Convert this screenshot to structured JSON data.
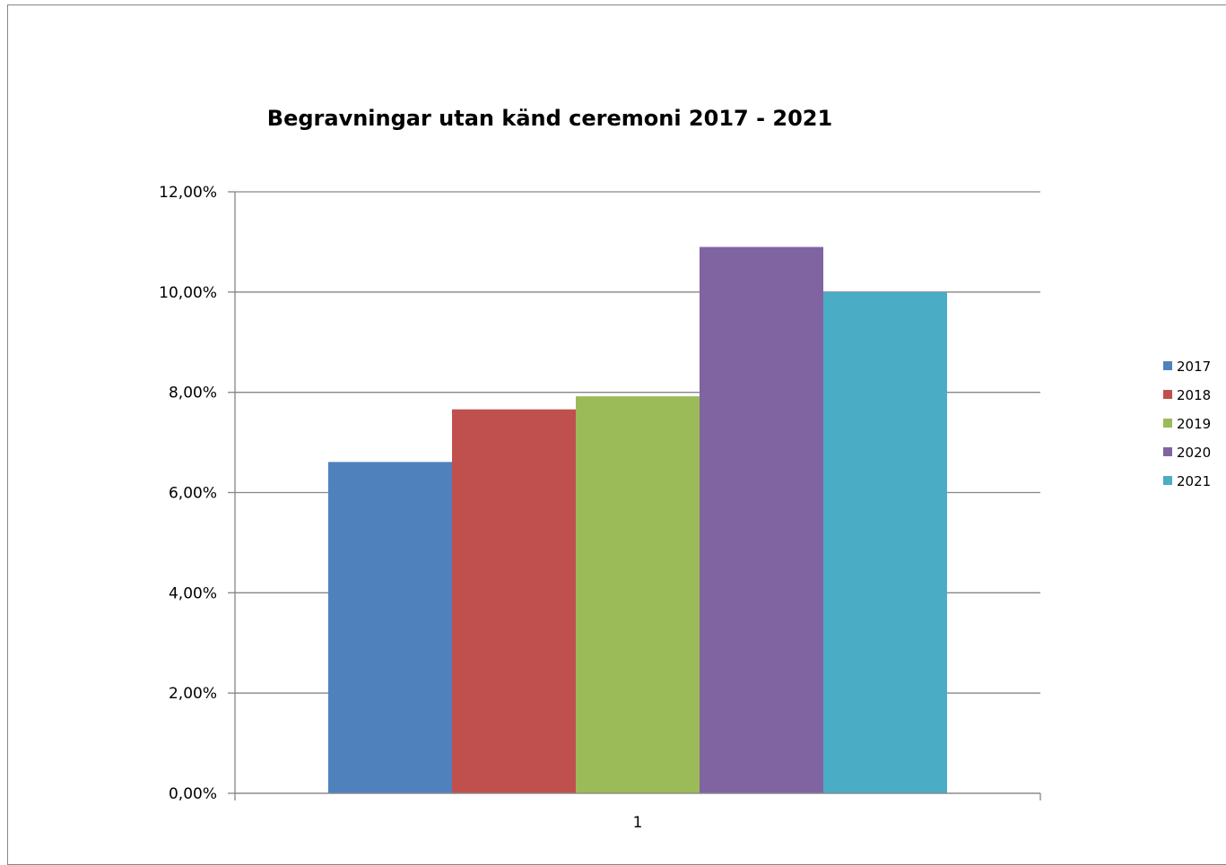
{
  "chart_data": {
    "type": "bar",
    "title": "Begravningar utan känd ceremoni 2017 - 2021",
    "categories": [
      "1"
    ],
    "series": [
      {
        "name": "2017",
        "values": [
          0.0661
        ],
        "color": "#4F81BD"
      },
      {
        "name": "2018",
        "values": [
          0.0766
        ],
        "color": "#C0504D"
      },
      {
        "name": "2019",
        "values": [
          0.0792
        ],
        "color": "#9BBB59"
      },
      {
        "name": "2020",
        "values": [
          0.109
        ],
        "color": "#8064A2"
      },
      {
        "name": "2021",
        "values": [
          0.1
        ],
        "color": "#4BACC6"
      }
    ],
    "xlabel": "",
    "ylabel": "",
    "ylim": [
      0,
      0.12
    ],
    "yticks": [
      "0,00%",
      "2,00%",
      "4,00%",
      "6,00%",
      "8,00%",
      "10,00%",
      "12,00%"
    ],
    "grid": true,
    "legend": "right"
  }
}
